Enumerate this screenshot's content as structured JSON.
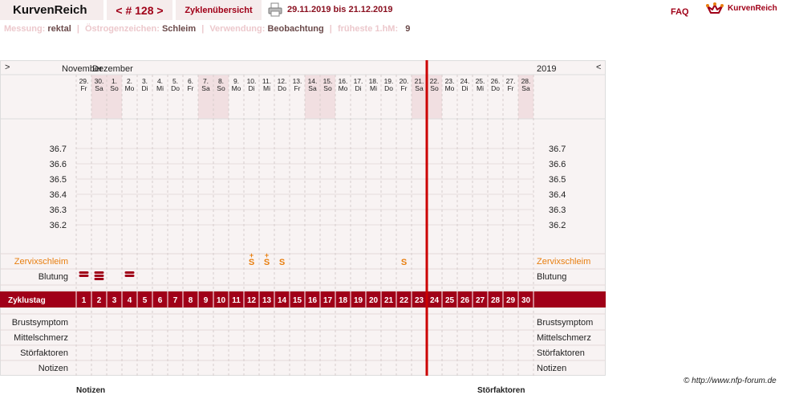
{
  "header": {
    "app_title": "KurvenReich",
    "cycle_nav": "< # 128 >",
    "overview_tab": "Zyklenübersicht",
    "date_range": "29.11.2019 bis 21.12.2019",
    "faq": "FAQ",
    "logo_text": "KurvenReich"
  },
  "meta": {
    "messung_label": "Messung:",
    "messung_value": "rektal",
    "oestrogen_label": "Östrogenzeichen:",
    "oestrogen_value": "Schleim",
    "verwendung_label": "Verwendung:",
    "verwendung_value": "Beobachtung",
    "hm_label": "früheste 1.hM:",
    "hm_value": "9"
  },
  "chart": {
    "left_toggle": ">",
    "right_toggle": "<",
    "year": "2019",
    "months": [
      {
        "label": "November",
        "at_day": 1
      },
      {
        "label": "Dezember",
        "at_day": 3
      }
    ],
    "days": [
      {
        "num": "29.",
        "name": "Fr",
        "weekend": false
      },
      {
        "num": "30.",
        "name": "Sa",
        "weekend": true
      },
      {
        "num": "1.",
        "name": "So",
        "weekend": true
      },
      {
        "num": "2.",
        "name": "Mo",
        "weekend": false
      },
      {
        "num": "3.",
        "name": "Di",
        "weekend": false
      },
      {
        "num": "4.",
        "name": "Mi",
        "weekend": false
      },
      {
        "num": "5.",
        "name": "Do",
        "weekend": false
      },
      {
        "num": "6.",
        "name": "Fr",
        "weekend": false
      },
      {
        "num": "7.",
        "name": "Sa",
        "weekend": true
      },
      {
        "num": "8.",
        "name": "So",
        "weekend": true
      },
      {
        "num": "9.",
        "name": "Mo",
        "weekend": false
      },
      {
        "num": "10.",
        "name": "Di",
        "weekend": false
      },
      {
        "num": "11.",
        "name": "Mi",
        "weekend": false
      },
      {
        "num": "12.",
        "name": "Do",
        "weekend": false
      },
      {
        "num": "13.",
        "name": "Fr",
        "weekend": false
      },
      {
        "num": "14.",
        "name": "Sa",
        "weekend": true
      },
      {
        "num": "15.",
        "name": "So",
        "weekend": true
      },
      {
        "num": "16.",
        "name": "Mo",
        "weekend": false
      },
      {
        "num": "17.",
        "name": "Di",
        "weekend": false
      },
      {
        "num": "18.",
        "name": "Mi",
        "weekend": false
      },
      {
        "num": "19.",
        "name": "Do",
        "weekend": false
      },
      {
        "num": "20.",
        "name": "Fr",
        "weekend": false
      },
      {
        "num": "21.",
        "name": "Sa",
        "weekend": true
      },
      {
        "num": "22.",
        "name": "So",
        "weekend": true
      },
      {
        "num": "23.",
        "name": "Mo",
        "weekend": false
      },
      {
        "num": "24.",
        "name": "Di",
        "weekend": false
      },
      {
        "num": "25.",
        "name": "Mi",
        "weekend": false
      },
      {
        "num": "26.",
        "name": "Do",
        "weekend": false
      },
      {
        "num": "27.",
        "name": "Fr",
        "weekend": false
      },
      {
        "num": "28.",
        "name": "Sa",
        "weekend": true
      }
    ],
    "temperatures": [
      "36.7",
      "36.6",
      "36.5",
      "36.4",
      "36.3",
      "36.2"
    ],
    "current_day_index": 23,
    "rows": {
      "zervix": "Zervixschleim",
      "blutung": "Blutung",
      "zyklustag": "Zyklustag",
      "brust": "Brustsymptom",
      "mittel": "Mittelschmerz",
      "stoer": "Störfaktoren",
      "notizen": "Notizen"
    },
    "cycle_days": [
      "1",
      "2",
      "3",
      "4",
      "5",
      "6",
      "7",
      "8",
      "9",
      "10",
      "11",
      "12",
      "13",
      "14",
      "15",
      "16",
      "17",
      "18",
      "19",
      "20",
      "21",
      "22",
      "23",
      "24",
      "25",
      "26",
      "27",
      "28",
      "29",
      "30"
    ],
    "mucus": [
      {
        "day": 12,
        "symbol": "S",
        "plus": true
      },
      {
        "day": 13,
        "symbol": "S",
        "plus": true
      },
      {
        "day": 14,
        "symbol": "S",
        "plus": false
      },
      {
        "day": 22,
        "symbol": "S",
        "plus": false
      }
    ],
    "bleeding": [
      {
        "day": 1,
        "level": 2
      },
      {
        "day": 2,
        "level": 3
      },
      {
        "day": 4,
        "level": 2
      }
    ],
    "colors": {
      "accent": "#a00018",
      "current_line": "#cc0000",
      "mucus": "#e87f10",
      "weekend": "#f1dfe1"
    }
  },
  "footer": {
    "copyright": "© http://www.nfp-forum.de",
    "notizen": "Notizen",
    "stoerfaktoren": "Störfaktoren"
  }
}
